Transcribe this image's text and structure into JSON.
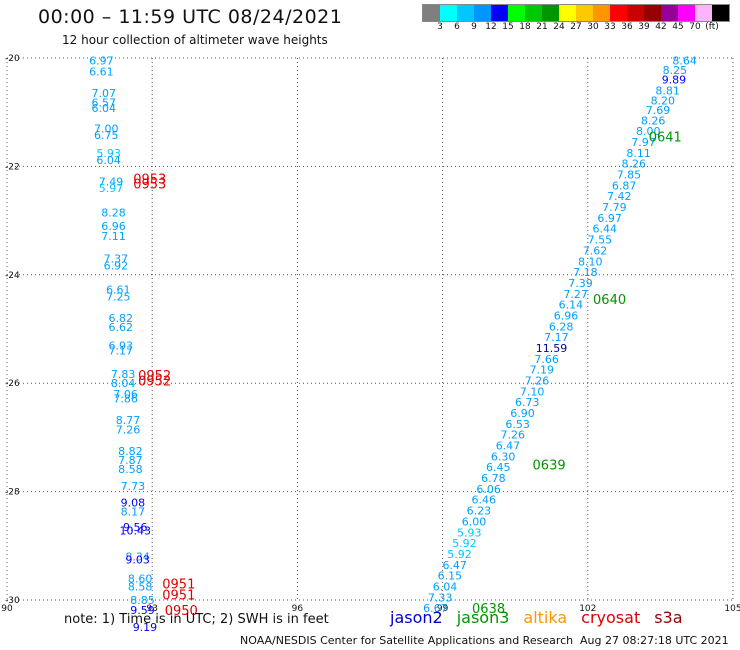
{
  "header": {
    "title": "00:00 – 11:59 UTC 08/24/2021",
    "subtitle": "12 hour collection of altimeter wave heights"
  },
  "legend": {
    "colors": [
      "#7f7f7f",
      "#00ffff",
      "#00c8ff",
      "#0096ff",
      "#0000ff",
      "#00ff00",
      "#00c800",
      "#009600",
      "#ffff00",
      "#ffc800",
      "#ff9600",
      "#ff0000",
      "#c80000",
      "#960000",
      "#960096",
      "#ff00ff",
      "#ffb4ff",
      "#000000"
    ],
    "ticks": [
      "3",
      "6",
      "9",
      "12",
      "15",
      "18",
      "21",
      "24",
      "27",
      "30",
      "33",
      "36",
      "39",
      "42",
      "45",
      "70",
      "(ft)"
    ]
  },
  "footer": {
    "note": "note:  1) Time is in UTC;  2) SWH is in feet",
    "satellites": [
      {
        "name": "jason2",
        "color": "#0000cc"
      },
      {
        "name": "jason3",
        "color": "#009600"
      },
      {
        "name": "altika",
        "color": "#ff9600"
      },
      {
        "name": "cryosat",
        "color": "#e00000"
      },
      {
        "name": "s3a",
        "color": "#960000"
      }
    ],
    "credit": "NOAA/NESDIS Center for Satellite Applications and Research",
    "timestamp": "Aug 27 08:27:18 UTC 2021"
  },
  "chart_data": {
    "type": "scatter",
    "x_ticks": [
      "90",
      "93",
      "96",
      "99",
      "102",
      "105"
    ],
    "y_ticks": [
      "-20",
      "-22",
      "-24",
      "-26",
      "-28",
      "-30"
    ],
    "xlim": [
      90,
      105
    ],
    "ylim": [
      -30,
      -20
    ],
    "grid": true,
    "tracks": [
      {
        "name": "west",
        "values": [
          {
            "x": 91.95,
            "y": -20.05,
            "v": "6.97",
            "c": "#00a0ff"
          },
          {
            "x": 91.95,
            "y": -20.25,
            "v": "6.61",
            "c": "#00a0ff"
          },
          {
            "x": 92.0,
            "y": -20.65,
            "v": "7.07",
            "c": "#00a0ff"
          },
          {
            "x": 92.0,
            "y": -20.82,
            "v": "6.57",
            "c": "#00a0ff"
          },
          {
            "x": 92.0,
            "y": -20.92,
            "v": "6.04",
            "c": "#00a0ff"
          },
          {
            "x": 92.05,
            "y": -21.3,
            "v": "7.00",
            "c": "#00a0ff"
          },
          {
            "x": 92.05,
            "y": -21.42,
            "v": "6.75",
            "c": "#00a0ff"
          },
          {
            "x": 92.1,
            "y": -21.75,
            "v": "5.93",
            "c": "#00c8ff"
          },
          {
            "x": 92.1,
            "y": -21.88,
            "v": "6.04",
            "c": "#00a0ff"
          },
          {
            "x": 92.15,
            "y": -22.28,
            "v": "7.49",
            "c": "#00a0ff"
          },
          {
            "x": 92.15,
            "y": -22.4,
            "v": "5.97",
            "c": "#00c8ff"
          },
          {
            "x": 92.2,
            "y": -22.85,
            "v": "8.28",
            "c": "#00a0ff"
          },
          {
            "x": 92.2,
            "y": -23.1,
            "v": "6.96",
            "c": "#00a0ff"
          },
          {
            "x": 92.2,
            "y": -23.28,
            "v": "7.11",
            "c": "#00a0ff"
          },
          {
            "x": 92.25,
            "y": -23.7,
            "v": "7.37",
            "c": "#00a0ff"
          },
          {
            "x": 92.25,
            "y": -23.83,
            "v": "6.92",
            "c": "#00a0ff"
          },
          {
            "x": 92.3,
            "y": -24.27,
            "v": "6.61",
            "c": "#00a0ff"
          },
          {
            "x": 92.3,
            "y": -24.4,
            "v": "7.25",
            "c": "#00a0ff"
          },
          {
            "x": 92.35,
            "y": -24.8,
            "v": "6.82",
            "c": "#00a0ff"
          },
          {
            "x": 92.35,
            "y": -24.96,
            "v": "6.62",
            "c": "#00a0ff"
          },
          {
            "x": 92.35,
            "y": -25.3,
            "v": "6.93",
            "c": "#00a0ff"
          },
          {
            "x": 92.35,
            "y": -25.4,
            "v": "7.17",
            "c": "#00a0ff"
          },
          {
            "x": 92.4,
            "y": -25.83,
            "v": "7.83",
            "c": "#00a0ff"
          },
          {
            "x": 92.4,
            "y": -26.0,
            "v": "8.04",
            "c": "#00a0ff"
          },
          {
            "x": 92.45,
            "y": -26.2,
            "v": "7.06",
            "c": "#00a0ff"
          },
          {
            "x": 92.45,
            "y": -26.28,
            "v": "7.86",
            "c": "#00a0ff"
          },
          {
            "x": 92.5,
            "y": -26.68,
            "v": "8.77",
            "c": "#00a0ff"
          },
          {
            "x": 92.5,
            "y": -26.85,
            "v": "7.26",
            "c": "#00a0ff"
          },
          {
            "x": 92.55,
            "y": -27.25,
            "v": "8.82",
            "c": "#00a0ff"
          },
          {
            "x": 92.55,
            "y": -27.42,
            "v": "7.87",
            "c": "#00a0ff"
          },
          {
            "x": 92.55,
            "y": -27.58,
            "v": "8.58",
            "c": "#00a0ff"
          },
          {
            "x": 92.6,
            "y": -27.9,
            "v": "7.73",
            "c": "#00a0ff"
          },
          {
            "x": 92.6,
            "y": -28.2,
            "v": "9.08",
            "c": "#0000ff"
          },
          {
            "x": 92.6,
            "y": -28.37,
            "v": "8.17",
            "c": "#00a0ff"
          },
          {
            "x": 92.65,
            "y": -28.65,
            "v": "9.56",
            "c": "#0000ff"
          },
          {
            "x": 92.65,
            "y": -28.72,
            "v": "10.43",
            "c": "#0000ff"
          },
          {
            "x": 92.7,
            "y": -29.2,
            "v": "8.34",
            "c": "#00a0ff"
          },
          {
            "x": 92.7,
            "y": -29.25,
            "v": "9.03",
            "c": "#0000ff"
          },
          {
            "x": 92.75,
            "y": -29.6,
            "v": "8.60",
            "c": "#00a0ff"
          },
          {
            "x": 92.75,
            "y": -29.75,
            "v": "8.58",
            "c": "#00a0ff"
          },
          {
            "x": 92.8,
            "y": -30.0,
            "v": "8.85",
            "c": "#00a0ff"
          },
          {
            "x": 92.8,
            "y": -30.18,
            "v": "9.59",
            "c": "#0000ff"
          },
          {
            "x": 92.85,
            "y": -30.5,
            "v": "9.19",
            "c": "#0000ff"
          }
        ]
      },
      {
        "name": "east",
        "values": [
          {
            "x": 104.0,
            "y": -20.05,
            "v": "8.64",
            "c": "#00a0ff"
          },
          {
            "x": 103.8,
            "y": -20.22,
            "v": "8.25",
            "c": "#00a0ff"
          },
          {
            "x": 103.78,
            "y": -20.4,
            "v": "9.89",
            "c": "#0000ff"
          },
          {
            "x": 103.65,
            "y": -20.6,
            "v": "8.81",
            "c": "#00a0ff"
          },
          {
            "x": 103.55,
            "y": -20.78,
            "v": "8.20",
            "c": "#00a0ff"
          },
          {
            "x": 103.45,
            "y": -20.96,
            "v": "7.69",
            "c": "#00a0ff"
          },
          {
            "x": 103.35,
            "y": -21.15,
            "v": "8.26",
            "c": "#00a0ff"
          },
          {
            "x": 103.25,
            "y": -21.35,
            "v": "8.00",
            "c": "#00a0ff"
          },
          {
            "x": 103.15,
            "y": -21.55,
            "v": "7.97",
            "c": "#00a0ff"
          },
          {
            "x": 103.05,
            "y": -21.75,
            "v": "8.11",
            "c": "#00a0ff"
          },
          {
            "x": 102.95,
            "y": -21.95,
            "v": "8.26",
            "c": "#00a0ff"
          },
          {
            "x": 102.85,
            "y": -22.15,
            "v": "7.85",
            "c": "#00a0ff"
          },
          {
            "x": 102.75,
            "y": -22.35,
            "v": "6.87",
            "c": "#00a0ff"
          },
          {
            "x": 102.65,
            "y": -22.55,
            "v": "7.42",
            "c": "#00a0ff"
          },
          {
            "x": 102.55,
            "y": -22.75,
            "v": "7.79",
            "c": "#00a0ff"
          },
          {
            "x": 102.45,
            "y": -22.95,
            "v": "6.97",
            "c": "#00a0ff"
          },
          {
            "x": 102.35,
            "y": -23.15,
            "v": "6.44",
            "c": "#00a0ff"
          },
          {
            "x": 102.25,
            "y": -23.35,
            "v": "7.55",
            "c": "#00a0ff"
          },
          {
            "x": 102.15,
            "y": -23.55,
            "v": "7.62",
            "c": "#00a0ff"
          },
          {
            "x": 102.05,
            "y": -23.75,
            "v": "8.10",
            "c": "#00a0ff"
          },
          {
            "x": 101.95,
            "y": -23.95,
            "v": "7.18",
            "c": "#00a0ff"
          },
          {
            "x": 101.85,
            "y": -24.15,
            "v": "7.39",
            "c": "#00a0ff"
          },
          {
            "x": 101.75,
            "y": -24.35,
            "v": "7.27",
            "c": "#00a0ff"
          },
          {
            "x": 101.65,
            "y": -24.55,
            "v": "6.14",
            "c": "#00a0ff"
          },
          {
            "x": 101.55,
            "y": -24.75,
            "v": "6.96",
            "c": "#00a0ff"
          },
          {
            "x": 101.45,
            "y": -24.95,
            "v": "6.28",
            "c": "#00a0ff"
          },
          {
            "x": 101.35,
            "y": -25.15,
            "v": "7.17",
            "c": "#00a0ff"
          },
          {
            "x": 101.25,
            "y": -25.35,
            "v": "11.59",
            "c": "#000096"
          },
          {
            "x": 101.15,
            "y": -25.55,
            "v": "7.66",
            "c": "#00a0ff"
          },
          {
            "x": 101.05,
            "y": -25.75,
            "v": "7.19",
            "c": "#00a0ff"
          },
          {
            "x": 100.95,
            "y": -25.95,
            "v": "7.26",
            "c": "#00a0ff"
          },
          {
            "x": 100.85,
            "y": -26.15,
            "v": "7.10",
            "c": "#00a0ff"
          },
          {
            "x": 100.75,
            "y": -26.35,
            "v": "6.73",
            "c": "#00a0ff"
          },
          {
            "x": 100.65,
            "y": -26.55,
            "v": "6.90",
            "c": "#00a0ff"
          },
          {
            "x": 100.55,
            "y": -26.75,
            "v": "6.53",
            "c": "#00a0ff"
          },
          {
            "x": 100.45,
            "y": -26.95,
            "v": "7.26",
            "c": "#00a0ff"
          },
          {
            "x": 100.35,
            "y": -27.15,
            "v": "6.47",
            "c": "#00a0ff"
          },
          {
            "x": 100.25,
            "y": -27.35,
            "v": "6.30",
            "c": "#00a0ff"
          },
          {
            "x": 100.15,
            "y": -27.55,
            "v": "6.45",
            "c": "#00a0ff"
          },
          {
            "x": 100.05,
            "y": -27.75,
            "v": "6.78",
            "c": "#00a0ff"
          },
          {
            "x": 99.95,
            "y": -27.95,
            "v": "6.06",
            "c": "#00a0ff"
          },
          {
            "x": 99.85,
            "y": -28.15,
            "v": "6.46",
            "c": "#00a0ff"
          },
          {
            "x": 99.75,
            "y": -28.35,
            "v": "6.23",
            "c": "#00a0ff"
          },
          {
            "x": 99.65,
            "y": -28.55,
            "v": "6.00",
            "c": "#00a0ff"
          },
          {
            "x": 99.55,
            "y": -28.75,
            "v": "5.93",
            "c": "#00c8ff"
          },
          {
            "x": 99.45,
            "y": -28.95,
            "v": "5.92",
            "c": "#00c8ff"
          },
          {
            "x": 99.35,
            "y": -29.15,
            "v": "5.92",
            "c": "#00c8ff"
          },
          {
            "x": 99.25,
            "y": -29.35,
            "v": "6.47",
            "c": "#00a0ff"
          },
          {
            "x": 99.15,
            "y": -29.55,
            "v": "6.15",
            "c": "#00a0ff"
          },
          {
            "x": 99.05,
            "y": -29.75,
            "v": "6.04",
            "c": "#00a0ff"
          },
          {
            "x": 98.95,
            "y": -29.95,
            "v": "7.33",
            "c": "#00a0ff"
          },
          {
            "x": 98.85,
            "y": -30.15,
            "v": "6.67",
            "c": "#00a0ff"
          }
        ]
      }
    ],
    "time_labels": [
      {
        "x": 92.95,
        "y": -22.22,
        "text": "0953",
        "color": "#e00000"
      },
      {
        "x": 92.95,
        "y": -22.32,
        "text": "0953",
        "color": "#e00000"
      },
      {
        "x": 93.05,
        "y": -25.85,
        "text": "0952",
        "color": "#e00000"
      },
      {
        "x": 93.05,
        "y": -25.95,
        "text": "0952",
        "color": "#e00000"
      },
      {
        "x": 93.55,
        "y": -29.7,
        "text": "0951",
        "color": "#e00000"
      },
      {
        "x": 93.55,
        "y": -29.9,
        "text": "0951",
        "color": "#e00000"
      },
      {
        "x": 93.6,
        "y": -30.18,
        "text": "0950",
        "color": "#e00000"
      },
      {
        "x": 103.6,
        "y": -21.45,
        "text": "0641",
        "color": "#009600"
      },
      {
        "x": 102.45,
        "y": -24.45,
        "text": "0640",
        "color": "#009600"
      },
      {
        "x": 101.2,
        "y": -27.5,
        "text": "0639",
        "color": "#009600"
      },
      {
        "x": 99.95,
        "y": -30.15,
        "text": "0638",
        "color": "#009600"
      }
    ]
  }
}
